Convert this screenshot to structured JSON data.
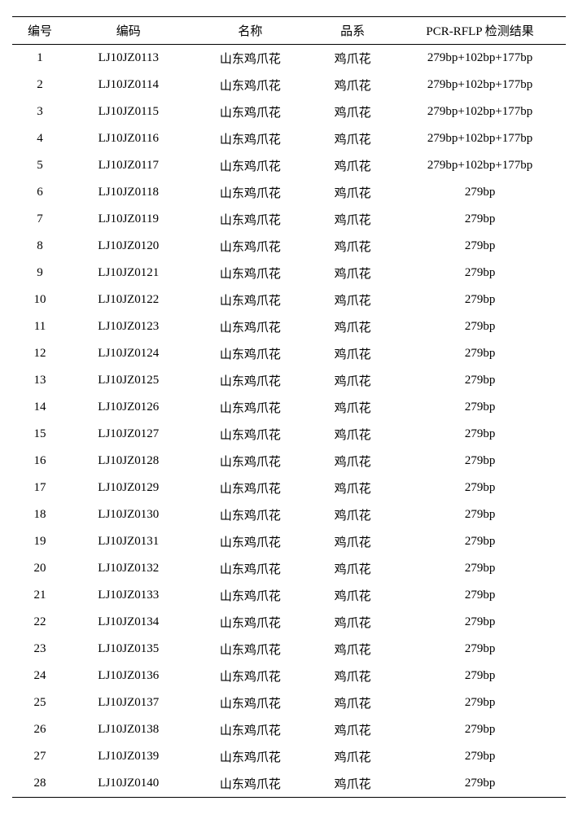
{
  "table": {
    "columns": [
      "编号",
      "编码",
      "名称",
      "品系",
      "PCR-RFLP 检测结果"
    ],
    "rows": [
      [
        "1",
        "LJ10JZ0113",
        "山东鸡爪花",
        "鸡爪花",
        "279bp+102bp+177bp"
      ],
      [
        "2",
        "LJ10JZ0114",
        "山东鸡爪花",
        "鸡爪花",
        "279bp+102bp+177bp"
      ],
      [
        "3",
        "LJ10JZ0115",
        "山东鸡爪花",
        "鸡爪花",
        "279bp+102bp+177bp"
      ],
      [
        "4",
        "LJ10JZ0116",
        "山东鸡爪花",
        "鸡爪花",
        "279bp+102bp+177bp"
      ],
      [
        "5",
        "LJ10JZ0117",
        "山东鸡爪花",
        "鸡爪花",
        "279bp+102bp+177bp"
      ],
      [
        "6",
        "LJ10JZ0118",
        "山东鸡爪花",
        "鸡爪花",
        "279bp"
      ],
      [
        "7",
        "LJ10JZ0119",
        "山东鸡爪花",
        "鸡爪花",
        "279bp"
      ],
      [
        "8",
        "LJ10JZ0120",
        "山东鸡爪花",
        "鸡爪花",
        "279bp"
      ],
      [
        "9",
        "LJ10JZ0121",
        "山东鸡爪花",
        "鸡爪花",
        "279bp"
      ],
      [
        "10",
        "LJ10JZ0122",
        "山东鸡爪花",
        "鸡爪花",
        "279bp"
      ],
      [
        "11",
        "LJ10JZ0123",
        "山东鸡爪花",
        "鸡爪花",
        "279bp"
      ],
      [
        "12",
        "LJ10JZ0124",
        "山东鸡爪花",
        "鸡爪花",
        "279bp"
      ],
      [
        "13",
        "LJ10JZ0125",
        "山东鸡爪花",
        "鸡爪花",
        "279bp"
      ],
      [
        "14",
        "LJ10JZ0126",
        "山东鸡爪花",
        "鸡爪花",
        "279bp"
      ],
      [
        "15",
        "LJ10JZ0127",
        "山东鸡爪花",
        "鸡爪花",
        "279bp"
      ],
      [
        "16",
        "LJ10JZ0128",
        "山东鸡爪花",
        "鸡爪花",
        "279bp"
      ],
      [
        "17",
        "LJ10JZ0129",
        "山东鸡爪花",
        "鸡爪花",
        "279bp"
      ],
      [
        "18",
        "LJ10JZ0130",
        "山东鸡爪花",
        "鸡爪花",
        "279bp"
      ],
      [
        "19",
        "LJ10JZ0131",
        "山东鸡爪花",
        "鸡爪花",
        "279bp"
      ],
      [
        "20",
        "LJ10JZ0132",
        "山东鸡爪花",
        "鸡爪花",
        "279bp"
      ],
      [
        "21",
        "LJ10JZ0133",
        "山东鸡爪花",
        "鸡爪花",
        "279bp"
      ],
      [
        "22",
        "LJ10JZ0134",
        "山东鸡爪花",
        "鸡爪花",
        "279bp"
      ],
      [
        "23",
        "LJ10JZ0135",
        "山东鸡爪花",
        "鸡爪花",
        "279bp"
      ],
      [
        "24",
        "LJ10JZ0136",
        "山东鸡爪花",
        "鸡爪花",
        "279bp"
      ],
      [
        "25",
        "LJ10JZ0137",
        "山东鸡爪花",
        "鸡爪花",
        "279bp"
      ],
      [
        "26",
        "LJ10JZ0138",
        "山东鸡爪花",
        "鸡爪花",
        "279bp"
      ],
      [
        "27",
        "LJ10JZ0139",
        "山东鸡爪花",
        "鸡爪花",
        "279bp"
      ],
      [
        "28",
        "LJ10JZ0140",
        "山东鸡爪花",
        "鸡爪花",
        "279bp"
      ]
    ]
  }
}
